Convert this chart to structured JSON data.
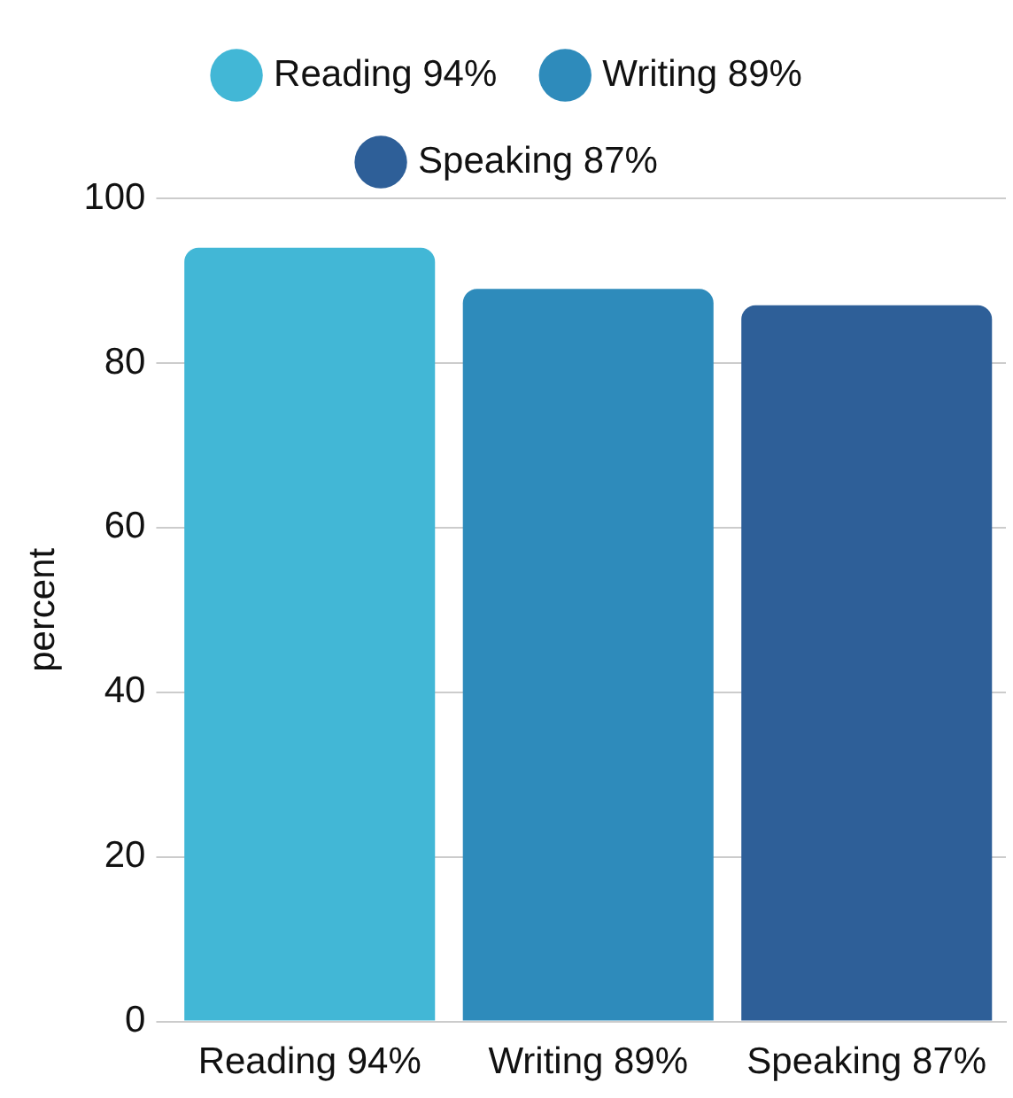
{
  "chart_data": {
    "type": "bar",
    "ylabel": "percent",
    "categories": [
      "Reading 94%",
      "Writing 89%",
      "Speaking 87%"
    ],
    "series": [
      {
        "name": "Reading 94%",
        "color": "#42b7d6",
        "values": [
          94,
          null,
          null
        ]
      },
      {
        "name": "Writing 89%",
        "color": "#2e8bbb",
        "values": [
          null,
          89,
          null
        ]
      },
      {
        "name": "Speaking 87%",
        "color": "#2e5f98",
        "values": [
          null,
          null,
          87
        ]
      }
    ],
    "ylim": [
      0,
      100
    ],
    "yticks": [
      0,
      20,
      40,
      60,
      80,
      100
    ],
    "grid": "y",
    "legend": "top"
  }
}
